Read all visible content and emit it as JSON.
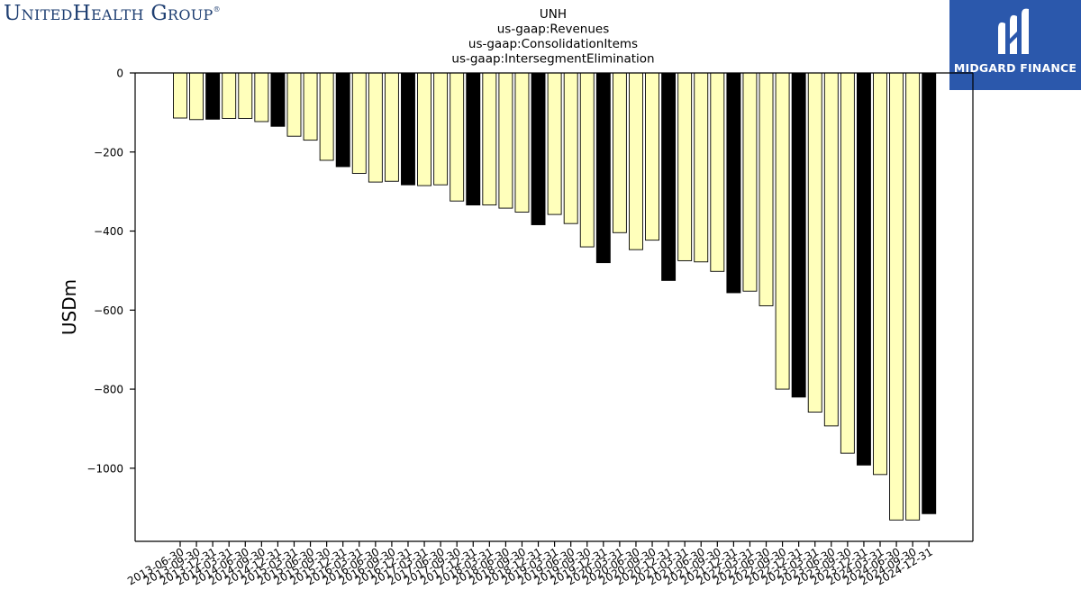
{
  "header": {
    "left_logo_text": "UnitedHealth Group",
    "left_logo_mark": "®",
    "right_logo_text": "MIDGARD FINANCE",
    "right_logo_icon": "midgard-logo-icon",
    "right_logo_bg": "#2b58ac"
  },
  "chart_data": {
    "type": "bar",
    "title": [
      "UNH",
      "us-gaap:Revenues",
      "us-gaap:ConsolidationItems",
      "us-gaap:IntersegmentElimination"
    ],
    "xlabel": "",
    "ylabel": "USDm",
    "ylim": [
      -1185,
      0
    ],
    "yticks": [
      0,
      -200,
      -400,
      -600,
      -800,
      -1000
    ],
    "ytick_labels": [
      "0",
      "−200",
      "−400",
      "−600",
      "−800",
      "−1000"
    ],
    "grid": false,
    "colors": {
      "quarter": "#ffffbb",
      "year_end": "#000000",
      "edge": "#000000"
    },
    "categories": [
      "2013-06-30",
      "2013-09-30",
      "2013-12-31",
      "2014-03-31",
      "2014-06-30",
      "2014-09-30",
      "2014-12-31",
      "2015-03-31",
      "2015-06-30",
      "2015-09-30",
      "2015-12-31",
      "2016-03-31",
      "2016-06-30",
      "2016-09-30",
      "2016-12-31",
      "2017-03-31",
      "2017-06-30",
      "2017-09-30",
      "2017-12-31",
      "2018-03-31",
      "2018-06-30",
      "2018-09-30",
      "2018-12-31",
      "2019-03-31",
      "2019-06-30",
      "2019-09-30",
      "2019-12-31",
      "2020-03-31",
      "2020-06-30",
      "2020-09-30",
      "2020-12-31",
      "2021-03-31",
      "2021-06-30",
      "2021-09-30",
      "2021-12-31",
      "2022-03-31",
      "2022-06-30",
      "2022-09-30",
      "2022-12-31",
      "2023-03-31",
      "2023-06-30",
      "2023-09-30",
      "2023-12-31",
      "2024-03-31",
      "2024-06-30",
      "2024-09-30",
      "2024-12-31"
    ],
    "values": [
      -114,
      -118,
      -117,
      -115,
      -115,
      -123,
      -135,
      -160,
      -170,
      -221,
      -237,
      -254,
      -276,
      -274,
      -283,
      -285,
      -283,
      -324,
      -334,
      -334,
      -342,
      -352,
      -384,
      -358,
      -381,
      -440,
      -480,
      -404,
      -447,
      -423,
      -525,
      -475,
      -478,
      -502,
      -556,
      -552,
      -589,
      -800,
      -820,
      -858,
      -893,
      -962,
      -992,
      -1016,
      -1131,
      -1131,
      -1115
    ],
    "highlight": [
      false,
      false,
      true,
      false,
      false,
      false,
      true,
      false,
      false,
      false,
      true,
      false,
      false,
      false,
      true,
      false,
      false,
      false,
      true,
      false,
      false,
      false,
      true,
      false,
      false,
      false,
      true,
      false,
      false,
      false,
      true,
      false,
      false,
      false,
      true,
      false,
      false,
      false,
      true,
      false,
      false,
      false,
      true,
      false,
      false,
      false,
      true
    ]
  }
}
